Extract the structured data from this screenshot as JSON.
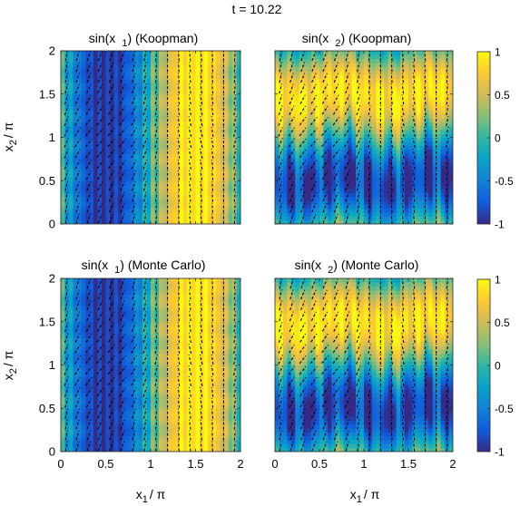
{
  "figure": {
    "title": "t = 10.22"
  },
  "colormap": {
    "name": "parula",
    "stops": [
      "#352a87",
      "#0f5cdd",
      "#1481d6",
      "#06a4ca",
      "#2eb7a4",
      "#87bf77",
      "#d1bb59",
      "#fec832",
      "#f9fb0e"
    ]
  },
  "colorbar": {
    "range": [
      -1,
      1
    ],
    "ticks": [
      1,
      0.5,
      0,
      -0.5,
      -1
    ],
    "tick_labels": [
      "1",
      "0.5",
      "0",
      "-0.5",
      "-1"
    ]
  },
  "arrows": {
    "color": "#000000",
    "style": "dashed"
  },
  "chart_data": [
    {
      "type": "heatmap",
      "title_main": "sin(x",
      "title_sub": "1",
      "title_rest": ") (Koopman)",
      "field": "sin_x1",
      "xlim": [
        0,
        2
      ],
      "ylim": [
        0,
        2
      ],
      "xticks": [
        0,
        0.5,
        1,
        1.5,
        2
      ],
      "xtick_labels": [],
      "yticks": [
        0,
        0.5,
        1,
        1.5,
        2
      ],
      "ytick_labels": [
        "0",
        "0.5",
        "1",
        "1.5",
        "2"
      ],
      "ylabel": {
        "main": "x",
        "sub": "2",
        "rest": "/ π"
      }
    },
    {
      "type": "heatmap",
      "title_main": "sin(x",
      "title_sub": "2",
      "title_rest": ") (Koopman)",
      "field": "sin_x2",
      "xlim": [
        0,
        2
      ],
      "ylim": [
        0,
        2
      ],
      "xticks": [
        0,
        0.5,
        1,
        1.5,
        2
      ],
      "xtick_labels": [],
      "yticks": [
        0,
        0.5,
        1,
        1.5,
        2
      ],
      "ytick_labels": []
    },
    {
      "type": "heatmap",
      "title_main": "sin(x",
      "title_sub": "1",
      "title_rest": ") (Monte Carlo)",
      "field": "sin_x1",
      "xlim": [
        0,
        2
      ],
      "ylim": [
        0,
        2
      ],
      "xticks": [
        0,
        0.5,
        1,
        1.5,
        2
      ],
      "xtick_labels": [
        "0",
        "0.5",
        "1",
        "1.5",
        "2"
      ],
      "yticks": [
        0,
        0.5,
        1,
        1.5,
        2
      ],
      "ytick_labels": [
        "0",
        "0.5",
        "1",
        "1.5",
        "2"
      ],
      "xlabel": {
        "main": "x",
        "sub": "1",
        "rest": "/ π"
      },
      "ylabel": {
        "main": "x",
        "sub": "2",
        "rest": "/ π"
      }
    },
    {
      "type": "heatmap",
      "title_main": "sin(x",
      "title_sub": "2",
      "title_rest": ") (Monte Carlo)",
      "field": "sin_x2",
      "xlim": [
        0,
        2
      ],
      "ylim": [
        0,
        2
      ],
      "xticks": [
        0,
        0.5,
        1,
        1.5,
        2
      ],
      "xtick_labels": [
        "0",
        "0.5",
        "1",
        "1.5",
        "2"
      ],
      "yticks": [
        0,
        0.5,
        1,
        1.5,
        2
      ],
      "ytick_labels": [],
      "xlabel": {
        "main": "x",
        "sub": "1",
        "rest": "/ π"
      }
    }
  ]
}
